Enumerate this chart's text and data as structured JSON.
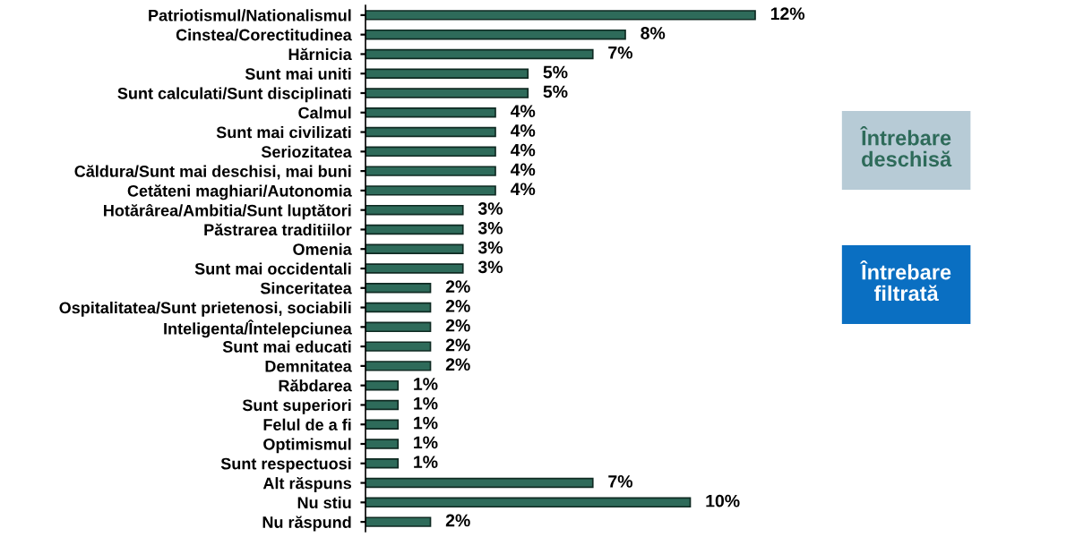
{
  "chart_data": {
    "type": "bar",
    "orientation": "horizontal",
    "categories": [
      "Patriotismul/Nationalismul",
      "Cinstea/Corectitudinea",
      "Hărnicia",
      "Sunt mai uniti",
      "Sunt calculati/Sunt disciplinati",
      "Calmul",
      "Sunt mai civilizati",
      "Seriozitatea",
      "Căldura/Sunt mai deschisi, mai buni",
      "Cetăteni maghiari/Autonomia",
      "Hotărârea/Ambitia/Sunt luptători",
      "Păstrarea traditiilor",
      "Omenia",
      "Sunt mai occidentali",
      "Sinceritatea",
      "Ospitalitatea/Sunt prietenosi, sociabili",
      "Inteligenta/Întelepciunea",
      "Sunt mai educati",
      "Demnitatea",
      "Răbdarea",
      "Sunt superiori",
      "Felul de a fi",
      "Optimismul",
      "Sunt respectuosi",
      "Alt răspuns",
      "Nu stiu",
      "Nu răspund"
    ],
    "values": [
      12,
      8,
      7,
      5,
      5,
      4,
      4,
      4,
      4,
      4,
      3,
      3,
      3,
      3,
      2,
      2,
      2,
      2,
      2,
      1,
      1,
      1,
      1,
      1,
      7,
      10,
      2
    ],
    "value_labels": [
      "12%",
      "8%",
      "7%",
      "5%",
      "5%",
      "4%",
      "4%",
      "4%",
      "4%",
      "4%",
      "3%",
      "3%",
      "3%",
      "3%",
      "2%",
      "2%",
      "2%",
      "2%",
      "2%",
      "1%",
      "1%",
      "1%",
      "1%",
      "1%",
      "7%",
      "10%",
      "2%"
    ],
    "color": "#2e6b5a",
    "tick_labels": "y",
    "grid": false,
    "legend": false,
    "annotations": [
      "Întrebare deschisă",
      "Întrebare filtrată"
    ]
  }
}
